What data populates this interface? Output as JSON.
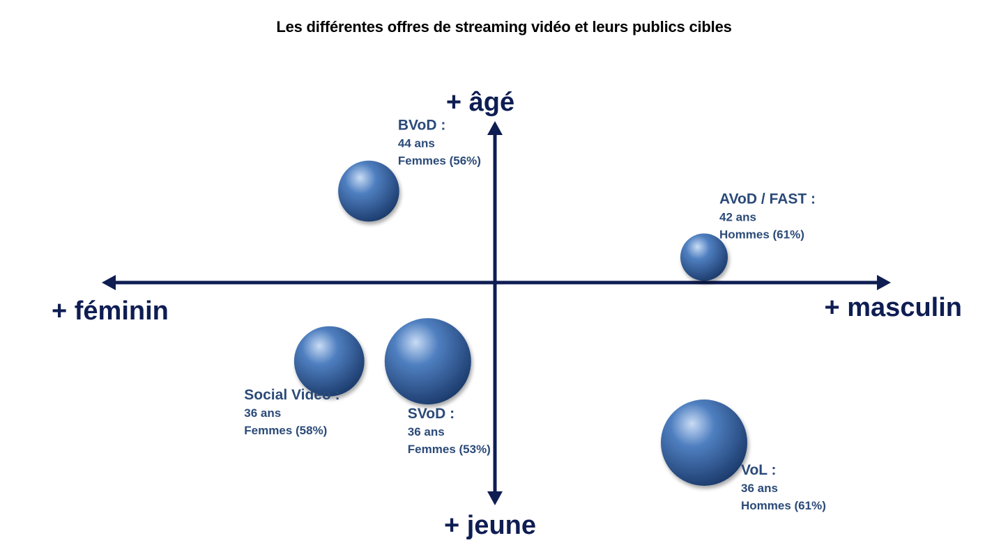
{
  "colors": {
    "axis": "#0e1d52",
    "label": "#2b4a78",
    "bubble_highlight": "#c9dcf5",
    "bubble_mid": "#4f7fc0",
    "bubble_dark": "#1b3a6b"
  },
  "chart_data": {
    "type": "scatter",
    "title": "Les différentes offres de streaming vidéo et leurs publics cibles",
    "axes": {
      "x_negative_label": "+ féminin",
      "x_positive_label": "+ masculin",
      "y_positive_label": "+ âgé",
      "y_negative_label": "+ jeune",
      "xlim": [
        -1,
        1
      ],
      "ylim": [
        -1,
        1
      ]
    },
    "points": [
      {
        "name": "BVoD :",
        "x": -0.32,
        "y": 0.36,
        "size": 0.5,
        "age": "44 ans",
        "gender": "Femmes (56%)"
      },
      {
        "name": "AVoD / FAST :",
        "x": 0.53,
        "y": 0.1,
        "size": 0.3,
        "age": "42 ans",
        "gender": "Hommes (61%)"
      },
      {
        "name": "Social Video :",
        "x": -0.42,
        "y": -0.31,
        "size": 0.66,
        "age": "36 ans",
        "gender": "Femmes (58%)"
      },
      {
        "name": "SVoD :",
        "x": -0.17,
        "y": -0.31,
        "size": 1.0,
        "age": "36 ans",
        "gender": "Femmes (53%)"
      },
      {
        "name": "VoL :",
        "x": 0.53,
        "y": -0.63,
        "size": 1.0,
        "age": "36 ans",
        "gender": "Hommes (61%)"
      }
    ]
  }
}
